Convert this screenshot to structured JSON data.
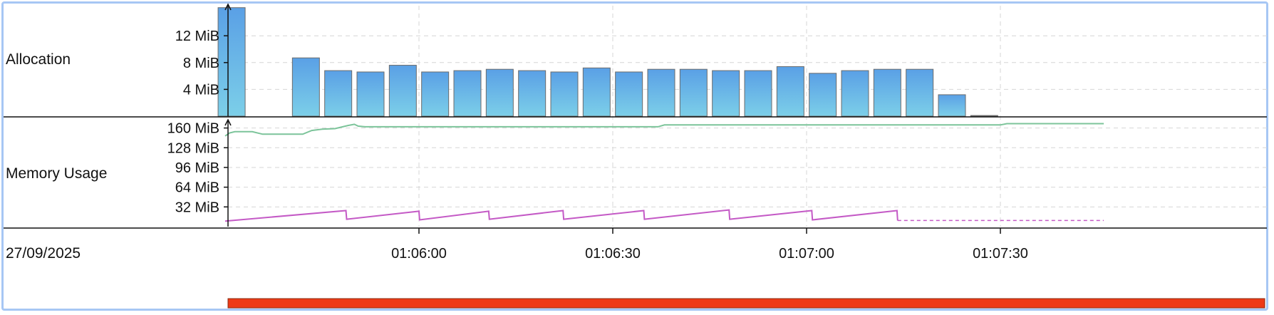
{
  "panels": {
    "allocation": {
      "label": "Allocation"
    },
    "memory": {
      "label": "Memory Usage"
    }
  },
  "date_label": "27/09/2025",
  "colors": {
    "bar_top": "#5aa0e6",
    "bar_bottom": "#7ccfe8",
    "bar_stroke": "#6b6b6b",
    "used_line": "#7cc49a",
    "heap_line": "#c45ac6",
    "range_bar": "#ee3a16",
    "grid": "#d6d6d6",
    "border": "#a7c7f4"
  },
  "chart_data": [
    {
      "type": "bar",
      "title": "Allocation",
      "ylabel": "",
      "ylim": [
        0,
        16
      ],
      "y_ticks": [
        "4 MiB",
        "8 MiB",
        "12 MiB"
      ],
      "y_tick_values": [
        4,
        8,
        12
      ],
      "unit": "MiB",
      "x_ticks": [
        "01:06:00",
        "01:06:30",
        "01:07:00",
        "01:07:30"
      ],
      "x_tick_seconds": [
        0,
        30,
        60,
        90
      ],
      "xlim_seconds": [
        -30,
        106
      ],
      "bars": [
        {
          "t": -29,
          "v": 16.2
        },
        {
          "t": -17.5,
          "v": 8.7
        },
        {
          "t": -12.5,
          "v": 6.8
        },
        {
          "t": -7.5,
          "v": 6.6
        },
        {
          "t": -2.5,
          "v": 7.6
        },
        {
          "t": 2.5,
          "v": 6.6
        },
        {
          "t": 7.5,
          "v": 6.8
        },
        {
          "t": 12.5,
          "v": 7.0
        },
        {
          "t": 17.5,
          "v": 6.8
        },
        {
          "t": 22.5,
          "v": 6.6
        },
        {
          "t": 27.5,
          "v": 7.2
        },
        {
          "t": 32.5,
          "v": 6.6
        },
        {
          "t": 37.5,
          "v": 7.0
        },
        {
          "t": 42.5,
          "v": 7.0
        },
        {
          "t": 47.5,
          "v": 6.8
        },
        {
          "t": 52.5,
          "v": 6.8
        },
        {
          "t": 57.5,
          "v": 7.4
        },
        {
          "t": 62.5,
          "v": 6.4
        },
        {
          "t": 67.5,
          "v": 6.8
        },
        {
          "t": 72.5,
          "v": 7.0
        },
        {
          "t": 77.5,
          "v": 7.0
        },
        {
          "t": 82.5,
          "v": 3.2
        },
        {
          "t": 87.5,
          "v": 0.1
        }
      ]
    },
    {
      "type": "line",
      "title": "Memory Usage",
      "ylabel": "",
      "ylim": [
        0,
        175
      ],
      "y_ticks": [
        "32 MiB",
        "64 MiB",
        "96 MiB",
        "128 MiB",
        "160 MiB"
      ],
      "y_tick_values": [
        32,
        64,
        96,
        128,
        160
      ],
      "unit": "MiB",
      "x_ticks": [
        "01:06:00",
        "01:06:30",
        "01:07:00",
        "01:07:30"
      ],
      "x_tick_seconds": [
        0,
        30,
        60,
        90
      ],
      "xlim_seconds": [
        -30,
        106
      ],
      "series": [
        {
          "id": "used",
          "points": [
            [
              -30,
              147
            ],
            [
              -29.3,
              152
            ],
            [
              -28.5,
              154
            ],
            [
              -25.8,
              154
            ],
            [
              -24.2,
              150
            ],
            [
              -18,
              150
            ],
            [
              -16.6,
              156
            ],
            [
              -15,
              158
            ],
            [
              -13,
              159
            ],
            [
              -11,
              164
            ],
            [
              -10,
              166
            ],
            [
              -9.4,
              163
            ],
            [
              -8.3,
              162
            ],
            [
              37,
              162
            ],
            [
              38,
              165
            ],
            [
              90,
              165
            ],
            [
              91,
              167
            ],
            [
              106,
              167
            ]
          ]
        },
        {
          "id": "heap",
          "style": "solid",
          "points": [
            [
              -30,
              9
            ],
            [
              -11.3,
              26
            ],
            [
              -11.2,
              12
            ],
            [
              0,
              25
            ],
            [
              0.1,
              11
            ],
            [
              10.8,
              25
            ],
            [
              10.9,
              12
            ],
            [
              22.3,
              26
            ],
            [
              22.4,
              12
            ],
            [
              34.8,
              26
            ],
            [
              34.9,
              12
            ],
            [
              48,
              27
            ],
            [
              48.1,
              12
            ],
            [
              60.8,
              26
            ],
            [
              60.9,
              11
            ],
            [
              74,
              26
            ],
            [
              74.1,
              10
            ]
          ]
        },
        {
          "id": "heap",
          "style": "dashed",
          "points": [
            [
              74.1,
              10
            ],
            [
              106,
              10
            ]
          ]
        }
      ]
    }
  ]
}
